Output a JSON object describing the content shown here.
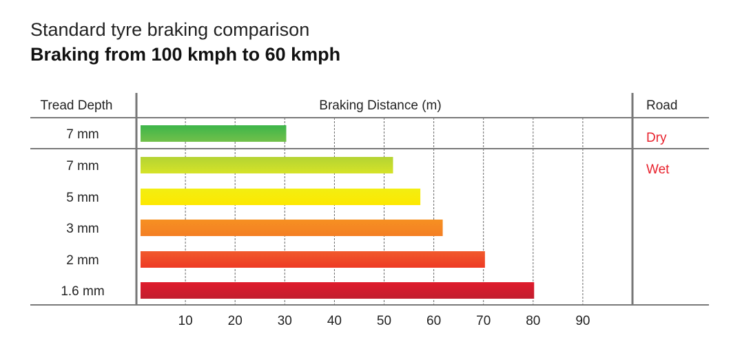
{
  "title": "Standard tyre braking comparison",
  "subtitle": "Braking from 100 kmph to 60 kmph",
  "chart_data": {
    "type": "bar",
    "orientation": "horizontal",
    "xlabel": "Braking Distance (m)",
    "row_header": "Tread Depth",
    "group_header": "Road",
    "categories": [
      "7 mm",
      "7 mm",
      "5 mm",
      "3 mm",
      "2 mm",
      "1.6 mm"
    ],
    "values": [
      30.3,
      51.8,
      57.3,
      61.8,
      70.3,
      80.2
    ],
    "groups": [
      {
        "label": "Dry",
        "rows": [
          0
        ]
      },
      {
        "label": "Wet",
        "rows": [
          1,
          2,
          3,
          4,
          5
        ]
      }
    ],
    "xticks": [
      10,
      20,
      30,
      40,
      50,
      60,
      70,
      80,
      90
    ],
    "xlim": [
      0,
      100
    ],
    "grid": "vertical dashed",
    "bar_colors": [
      [
        "#3db54a",
        "#72c04a"
      ],
      [
        "#b3d334",
        "#d6e327"
      ],
      [
        "#f2ee12",
        "#fde800"
      ],
      [
        "#f69022",
        "#f47f24"
      ],
      [
        "#f05a2c",
        "#ee3a24"
      ],
      [
        "#df1c2c",
        "#c21d2f"
      ]
    ],
    "group_label_color": "#e8222d",
    "line_color": "#777777"
  }
}
